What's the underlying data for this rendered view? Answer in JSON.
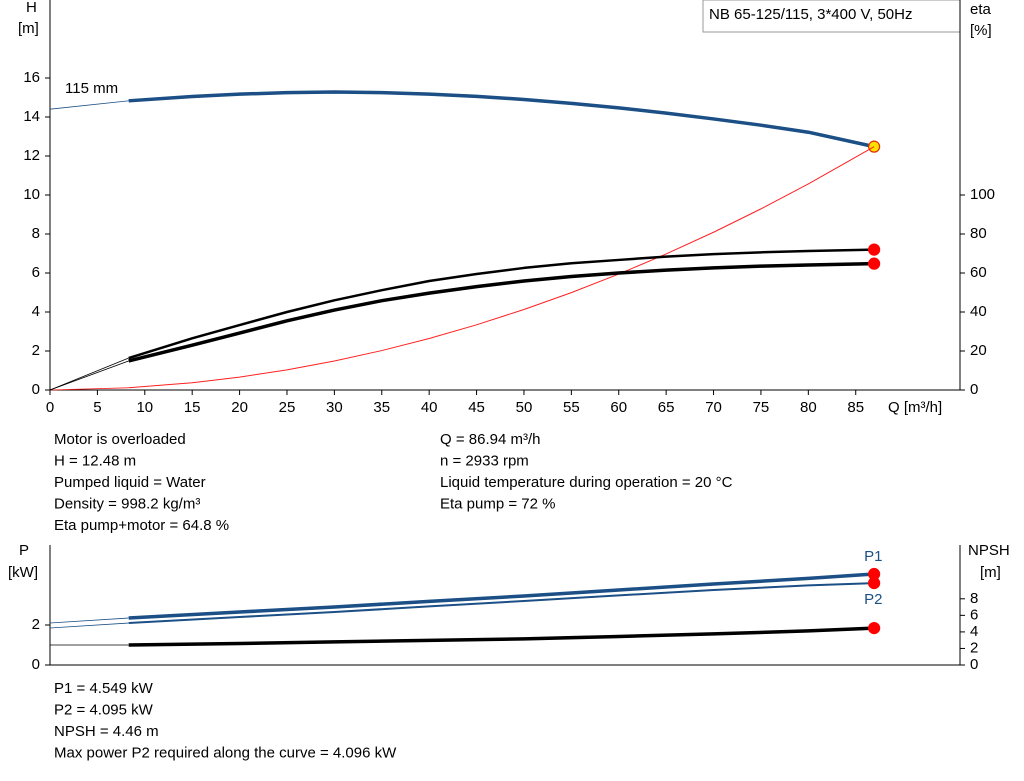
{
  "chart_data": [
    {
      "type": "line",
      "title": "NB 65-125/115, 3*400 V, 50Hz",
      "curve_label": "115 mm",
      "ylabel": "H",
      "yunit": "[m]",
      "y2label": "eta",
      "y2unit": "[%]",
      "xlabel": "Q [m³/h]",
      "x": [
        0,
        8.3,
        15,
        20,
        25,
        30,
        35,
        40,
        45,
        50,
        55,
        60,
        65,
        70,
        75,
        80,
        86.94
      ],
      "xlim": [
        0,
        96
      ],
      "ylim": [
        0,
        20
      ],
      "y2lim": [
        0,
        200
      ],
      "xticks": [
        0,
        5,
        10,
        15,
        20,
        25,
        30,
        35,
        40,
        45,
        50,
        55,
        60,
        65,
        70,
        75,
        80,
        85
      ],
      "yticks": [
        0,
        2,
        4,
        6,
        8,
        10,
        12,
        14,
        16
      ],
      "y2ticks": [
        0,
        20,
        40,
        60,
        80,
        100
      ],
      "series": [
        {
          "color": "#1b4f86",
          "marker_color": "#ffe000",
          "values": [
            14.4,
            14.83,
            15.05,
            15.17,
            15.25,
            15.28,
            15.25,
            15.17,
            15.06,
            14.9,
            14.7,
            14.47,
            14.2,
            13.9,
            13.58,
            13.22,
            12.48
          ]
        },
        {
          "color": "#ff2020",
          "values": [
            0,
            0.114,
            0.371,
            0.66,
            1.032,
            1.486,
            2.023,
            2.642,
            3.343,
            4.128,
            4.995,
            5.944,
            6.976,
            8.09,
            9.288,
            10.567,
            12.48
          ]
        },
        {
          "color": "#000000",
          "marker_color": "#ff0000",
          "axis": "y2",
          "values": [
            0,
            16.4,
            26.5,
            33.3,
            40,
            46,
            51.2,
            55.9,
            59.5,
            62.6,
            65,
            66.7,
            68.4,
            69.7,
            70.6,
            71.3,
            72
          ]
        },
        {
          "color": "#000000",
          "marker_color": "#ff0000",
          "axis": "y2",
          "values": [
            0,
            14.9,
            23,
            29.2,
            35.5,
            41,
            45.8,
            49.7,
            53,
            55.9,
            58.2,
            60,
            61.5,
            62.6,
            63.5,
            64.1,
            64.8
          ]
        }
      ]
    },
    {
      "type": "line",
      "ylabel": "P",
      "yunit": "[kW]",
      "y2label": "NPSH",
      "y2unit": "[m]",
      "x": [
        0,
        8.3,
        20,
        30,
        40,
        50,
        60,
        70,
        80,
        86.94
      ],
      "xlim": [
        0,
        96
      ],
      "ylim": [
        0,
        6
      ],
      "y2lim": [
        0,
        14.5
      ],
      "yticks": [
        0,
        2
      ],
      "y2ticks": [
        0,
        2,
        4,
        6,
        8
      ],
      "series": [
        {
          "name": "P1",
          "color": "#1b4f86",
          "marker_color": "#ff0000",
          "values": [
            2.1,
            2.35,
            2.65,
            2.9,
            3.18,
            3.45,
            3.75,
            4.05,
            4.33,
            4.549
          ]
        },
        {
          "name": "P2",
          "color": "#1b4f86",
          "marker_color": "#ff0000",
          "values": [
            1.85,
            2.1,
            2.4,
            2.65,
            2.93,
            3.2,
            3.48,
            3.75,
            3.98,
            4.095
          ]
        },
        {
          "color": "#000000",
          "marker_color": "#ff0000",
          "axis": "y2",
          "values": [
            2.42,
            2.42,
            2.6,
            2.79,
            2.97,
            3.15,
            3.45,
            3.76,
            4.12,
            4.46
          ]
        }
      ]
    }
  ],
  "info_top": {
    "left": [
      "Motor is overloaded",
      "H = 12.48 m",
      "Pumped liquid = Water",
      "Density = 998.2 kg/m³",
      "Eta pump+motor = 64.8 %"
    ],
    "right": [
      "Q = 86.94 m³/h",
      "n = 2933 rpm",
      "Liquid temperature during operation = 20 °C",
      "Eta pump = 72 %"
    ]
  },
  "info_bottom": [
    "P1 = 4.549 kW",
    "P2 = 4.095 kW",
    "NPSH = 4.46 m",
    "Max power P2 required along the curve = 4.096 kW"
  ]
}
